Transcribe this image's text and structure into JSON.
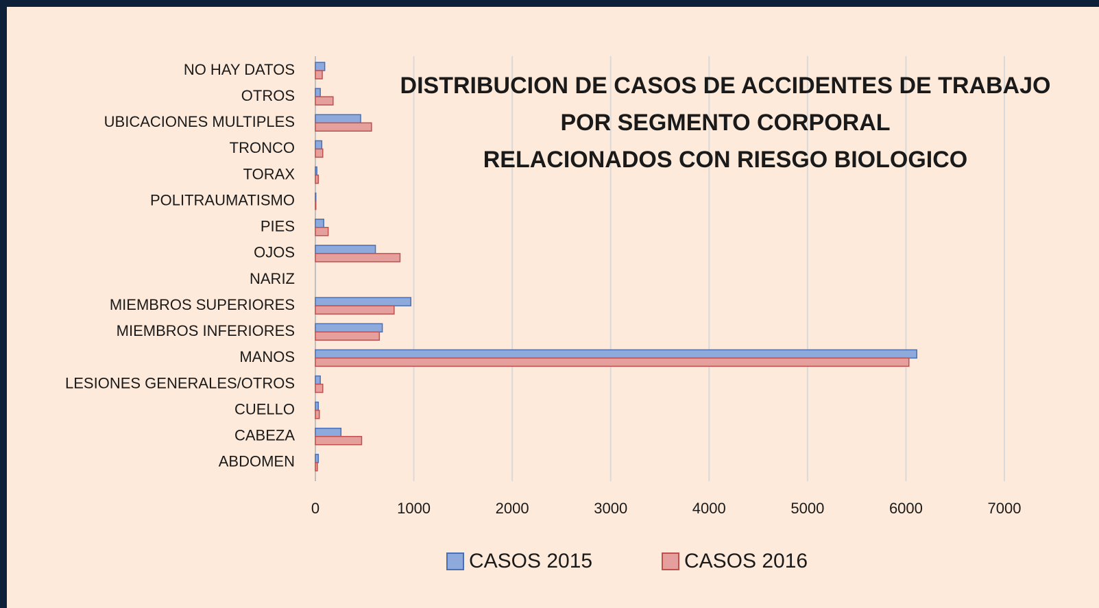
{
  "chart_data": {
    "type": "hbar",
    "title_lines": [
      "DISTRIBUCION  DE CASOS DE ACCIDENTES  DE TRABAJO",
      "POR SEGMENTO  CORPORAL",
      "RELACIONADOS  CON RIESGO  BIOLOGICO"
    ],
    "categories": [
      "NO HAY DATOS",
      "OTROS",
      "UBICACIONES MULTIPLES",
      "TRONCO",
      "TORAX",
      "POLITRAUMATISMO",
      "PIES",
      "OJOS",
      "NARIZ",
      "MIEMBROS SUPERIORES",
      "MIEMBROS INFERIORES",
      "MANOS",
      "LESIONES GENERALES/OTROS",
      "CUELLO",
      "CABEZA",
      "ABDOMEN"
    ],
    "series": [
      {
        "name": "CASOS 2015",
        "color": "#8eaadc",
        "values": [
          95,
          50,
          460,
          65,
          15,
          5,
          85,
          610,
          0,
          970,
          680,
          6110,
          50,
          30,
          260,
          30
        ]
      },
      {
        "name": "CASOS 2016",
        "color": "#e5a09e",
        "values": [
          70,
          180,
          570,
          75,
          30,
          5,
          130,
          860,
          0,
          800,
          650,
          6030,
          75,
          40,
          470,
          20
        ]
      }
    ],
    "xlim": [
      0,
      7000
    ],
    "xticks": [
      0,
      1000,
      2000,
      3000,
      4000,
      5000,
      6000,
      7000
    ],
    "grid": true,
    "legend": "bottom"
  }
}
